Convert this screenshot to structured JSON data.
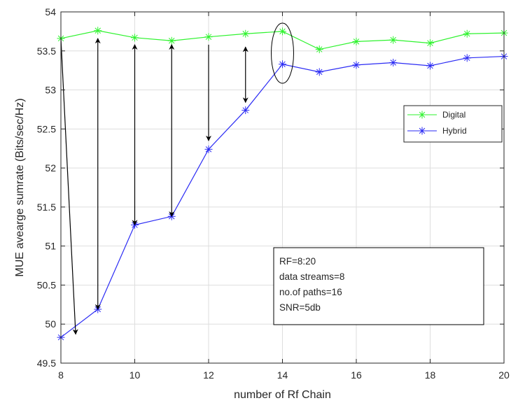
{
  "chart_data": {
    "type": "line",
    "title": "",
    "xlabel": "number of Rf Chain",
    "ylabel": "MUE avearge sumrate (Bits/sec/Hz)",
    "xlim": [
      8,
      20
    ],
    "ylim": [
      49.5,
      54
    ],
    "xticks": [
      8,
      10,
      12,
      14,
      16,
      18,
      20
    ],
    "xtick_labels": [
      "8",
      "10",
      "12",
      "14",
      "16",
      "18",
      "20"
    ],
    "yticks": [
      49.5,
      50,
      50.5,
      51,
      51.5,
      52,
      52.5,
      53,
      53.5,
      54
    ],
    "ytick_labels": [
      "49.5",
      "50",
      "50.5",
      "51",
      "51.5",
      "52",
      "52.5",
      "53",
      "53.5",
      "54"
    ],
    "grid": true,
    "legend_position": "upper-right",
    "x": [
      8,
      9,
      10,
      11,
      12,
      13,
      14,
      15,
      16,
      17,
      18,
      19,
      20
    ],
    "series": [
      {
        "name": "Digital",
        "color": "#2ef32e",
        "marker": "asterisk",
        "values": [
          53.66,
          53.76,
          53.67,
          53.63,
          53.68,
          53.72,
          53.75,
          53.52,
          53.62,
          53.64,
          53.6,
          53.72,
          53.73
        ]
      },
      {
        "name": "Hybrid",
        "color": "#2b2bf4",
        "marker": "asterisk",
        "values": [
          49.83,
          50.19,
          51.27,
          51.38,
          52.24,
          52.74,
          53.33,
          53.23,
          53.32,
          53.35,
          53.31,
          53.41,
          53.43
        ]
      }
    ],
    "annotations": {
      "textbox_lines": [
        "RF=8:20",
        "data streams=8",
        "no.of paths=16",
        "SNR=5db"
      ],
      "ellipse_at_x": 14,
      "arrows": [
        {
          "x_from": 8,
          "y_from": 53.66,
          "x_to": 8.4,
          "y_to": 49.87,
          "heads": "end"
        },
        {
          "x_from": 9,
          "y_from": 50.19,
          "x_to": 9,
          "y_to": 53.66,
          "heads": "both"
        },
        {
          "x_from": 10,
          "y_from": 51.27,
          "x_to": 10,
          "y_to": 53.58,
          "heads": "both"
        },
        {
          "x_from": 11,
          "y_from": 51.38,
          "x_to": 11,
          "y_to": 53.58,
          "heads": "both"
        },
        {
          "x_from": 12,
          "y_from": 53.58,
          "x_to": 12,
          "y_to": 52.35,
          "heads": "end"
        },
        {
          "x_from": 13,
          "y_from": 52.84,
          "x_to": 13,
          "y_to": 53.55,
          "heads": "both"
        }
      ]
    }
  }
}
